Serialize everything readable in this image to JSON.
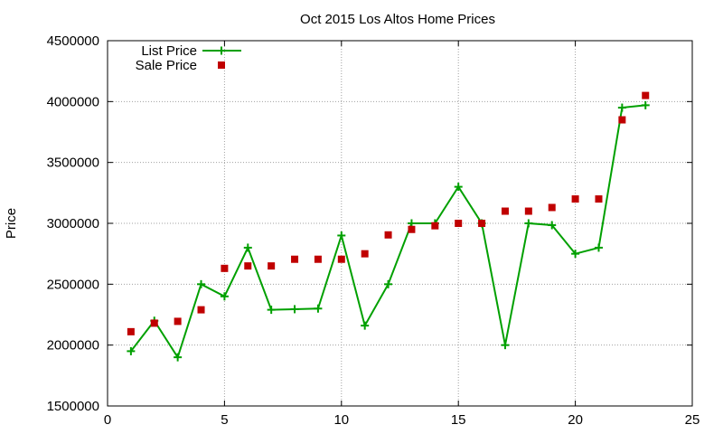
{
  "chart_data": {
    "type": "line",
    "title": "Oct 2015 Los Altos Home Prices",
    "xlabel": "",
    "ylabel": "Price",
    "xlim": [
      0,
      25
    ],
    "ylim": [
      1500000,
      4500000
    ],
    "x_ticks": [
      0,
      5,
      10,
      15,
      20,
      25
    ],
    "y_ticks": [
      1500000,
      2000000,
      2500000,
      3000000,
      3500000,
      4000000,
      4500000
    ],
    "grid": true,
    "legend_position": "top-left",
    "series": [
      {
        "name": "List Price",
        "style": "line-with-plus-markers",
        "color": "#00a000",
        "x": [
          1,
          2,
          3,
          4,
          5,
          6,
          7,
          8,
          9,
          10,
          11,
          12,
          13,
          14,
          15,
          16,
          17,
          18,
          19,
          20,
          21,
          22,
          23
        ],
        "y": [
          1950000,
          2200000,
          1900000,
          2500000,
          2400000,
          2800000,
          2290000,
          2295000,
          2300000,
          2900000,
          2160000,
          2500000,
          3000000,
          3000000,
          3300000,
          3000000,
          2000000,
          3000000,
          2985000,
          2750000,
          2800000,
          3950000,
          3970000
        ]
      },
      {
        "name": "Sale Price",
        "style": "square-markers",
        "color": "#c00000",
        "x": [
          1,
          2,
          3,
          4,
          5,
          6,
          7,
          8,
          9,
          10,
          11,
          12,
          13,
          14,
          15,
          16,
          17,
          18,
          19,
          20,
          21,
          22,
          23
        ],
        "y": [
          2110000,
          2180000,
          2195000,
          2290000,
          2630000,
          2650000,
          2650000,
          2705000,
          2705000,
          2705000,
          2750000,
          2905000,
          2950000,
          2980000,
          3000000,
          3000000,
          3100000,
          3100000,
          3130000,
          3200000,
          3200000,
          3850000,
          4050000
        ]
      }
    ]
  }
}
